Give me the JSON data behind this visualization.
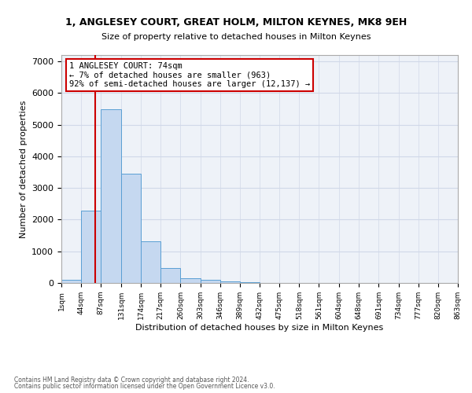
{
  "title1": "1, ANGLESEY COURT, GREAT HOLM, MILTON KEYNES, MK8 9EH",
  "title2": "Size of property relative to detached houses in Milton Keynes",
  "xlabel": "Distribution of detached houses by size in Milton Keynes",
  "ylabel": "Number of detached properties",
  "footnote1": "Contains HM Land Registry data © Crown copyright and database right 2024.",
  "footnote2": "Contains public sector information licensed under the Open Government Licence v3.0.",
  "bar_values": [
    100,
    2280,
    5480,
    3450,
    1320,
    480,
    155,
    90,
    55,
    20,
    0,
    0,
    0,
    0,
    0,
    0,
    0,
    0,
    0,
    0
  ],
  "bar_color": "#c5d8f0",
  "bar_edge_color": "#5a9fd4",
  "tick_labels": [
    "1sqm",
    "44sqm",
    "87sqm",
    "131sqm",
    "174sqm",
    "217sqm",
    "260sqm",
    "303sqm",
    "346sqm",
    "389sqm",
    "432sqm",
    "475sqm",
    "518sqm",
    "561sqm",
    "604sqm",
    "648sqm",
    "691sqm",
    "734sqm",
    "777sqm",
    "820sqm",
    "863sqm"
  ],
  "ylim": [
    0,
    7200
  ],
  "yticks": [
    0,
    1000,
    2000,
    3000,
    4000,
    5000,
    6000,
    7000
  ],
  "property_size": 74,
  "bin_edges": [
    1,
    44,
    87,
    131,
    174,
    217,
    260,
    303,
    346,
    389,
    432,
    475,
    518,
    561,
    604,
    648,
    691,
    734,
    777,
    820,
    863
  ],
  "vline_color": "#cc0000",
  "annotation_line1": "1 ANGLESEY COURT: 74sqm",
  "annotation_line2": "← 7% of detached houses are smaller (963)",
  "annotation_line3": "92% of semi-detached houses are larger (12,137) →",
  "annotation_box_color": "#ffffff",
  "annotation_border_color": "#cc0000",
  "grid_color": "#d0d8e8",
  "background_color": "#eef2f8",
  "fig_width": 6.0,
  "fig_height": 5.0,
  "dpi": 100
}
